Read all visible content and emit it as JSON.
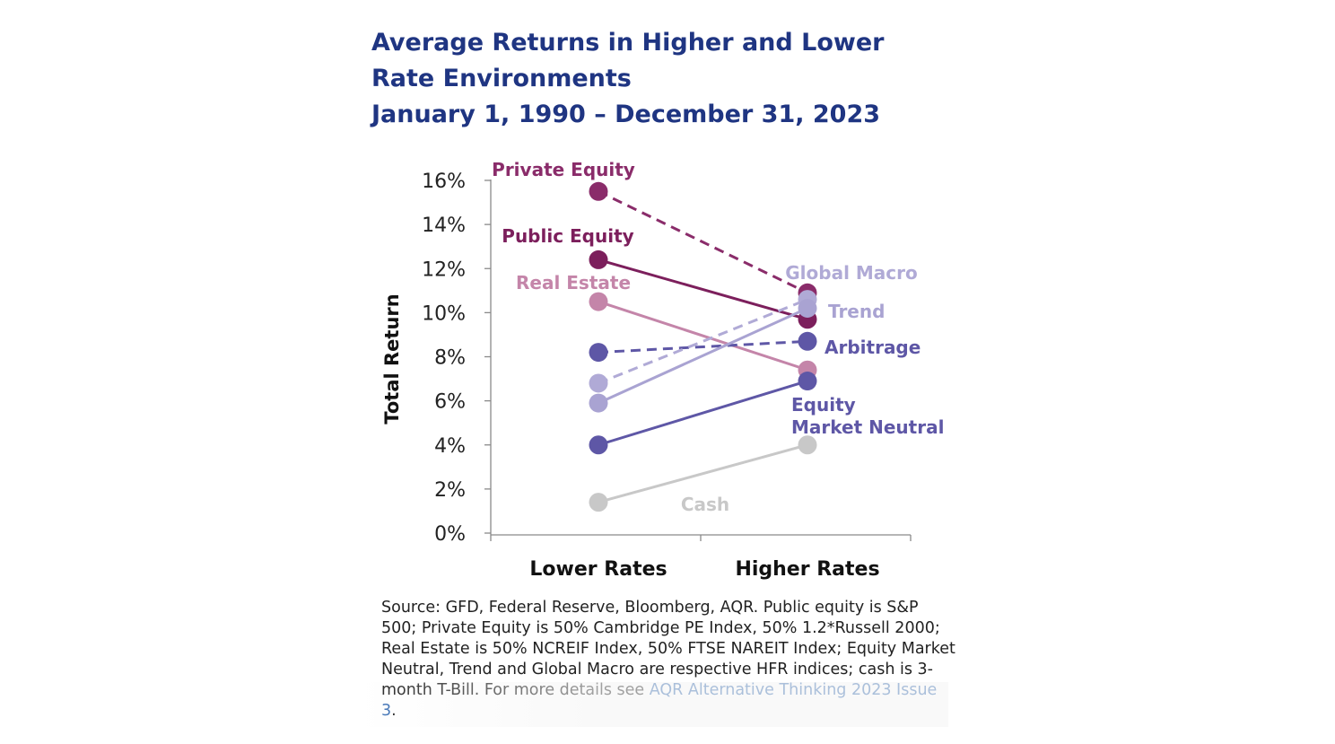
{
  "header": {
    "title": "Average Returns in Higher and Lower Rate Environments",
    "subtitle": "January 1, 1990 – December 31, 2023"
  },
  "source": {
    "text": "Source: GFD, Federal Reserve, Bloomberg, AQR. Public equity is S&P 500; Private Equity is 50% Cambridge PE Index, 50% 1.2*Russell 2000; Real Estate is 50% NCREIF Index, 50% FTSE NAREIT Index; Equity Market Neutral, Trend and Global Macro are respective HFR indices; cash is 3-month T-Bill. For more details see ",
    "link_text": "AQR Alternative Thinking 2023 Issue 3",
    "after_link": "."
  },
  "chart_data": {
    "type": "line",
    "categories": [
      "Lower Rates",
      "Higher Rates"
    ],
    "ylabel": "Total Return",
    "xlabel": "",
    "ylim": [
      0,
      16
    ],
    "yticks": [
      0,
      2,
      4,
      6,
      8,
      10,
      12,
      14,
      16
    ],
    "ytick_labels": [
      "0%",
      "2%",
      "4%",
      "6%",
      "8%",
      "10%",
      "12%",
      "14%",
      "16%"
    ],
    "grid": false,
    "series": [
      {
        "name": "Private Equity",
        "label_lines": [
          "Private Equity"
        ],
        "values": [
          15.5,
          10.9
        ],
        "color": "#8a2c6a",
        "dashed": true
      },
      {
        "name": "Public Equity",
        "label_lines": [
          "Public Equity"
        ],
        "values": [
          12.4,
          9.7
        ],
        "color": "#7c1f5c",
        "dashed": false
      },
      {
        "name": "Real Estate",
        "label_lines": [
          "Real Estate"
        ],
        "values": [
          10.5,
          7.4
        ],
        "color": "#c485a9",
        "dashed": false
      },
      {
        "name": "Arbitrage",
        "label_lines": [
          "Arbitrage"
        ],
        "values": [
          8.2,
          8.7
        ],
        "color": "#5e57a6",
        "dashed": true
      },
      {
        "name": "Global Macro",
        "label_lines": [
          "Global Macro"
        ],
        "values": [
          6.8,
          10.6
        ],
        "color": "#b0aad6",
        "dashed": true
      },
      {
        "name": "Trend",
        "label_lines": [
          "Trend"
        ],
        "values": [
          5.9,
          10.2
        ],
        "color": "#a9a3d2",
        "dashed": false
      },
      {
        "name": "Equity Market Neutral",
        "label_lines": [
          "Equity",
          "Market Neutral"
        ],
        "values": [
          4.0,
          6.9
        ],
        "color": "#5e57a6",
        "dashed": false
      },
      {
        "name": "Cash",
        "label_lines": [
          "Cash"
        ],
        "values": [
          1.4,
          4.0
        ],
        "color": "#c8c8c8",
        "dashed": false
      }
    ]
  }
}
